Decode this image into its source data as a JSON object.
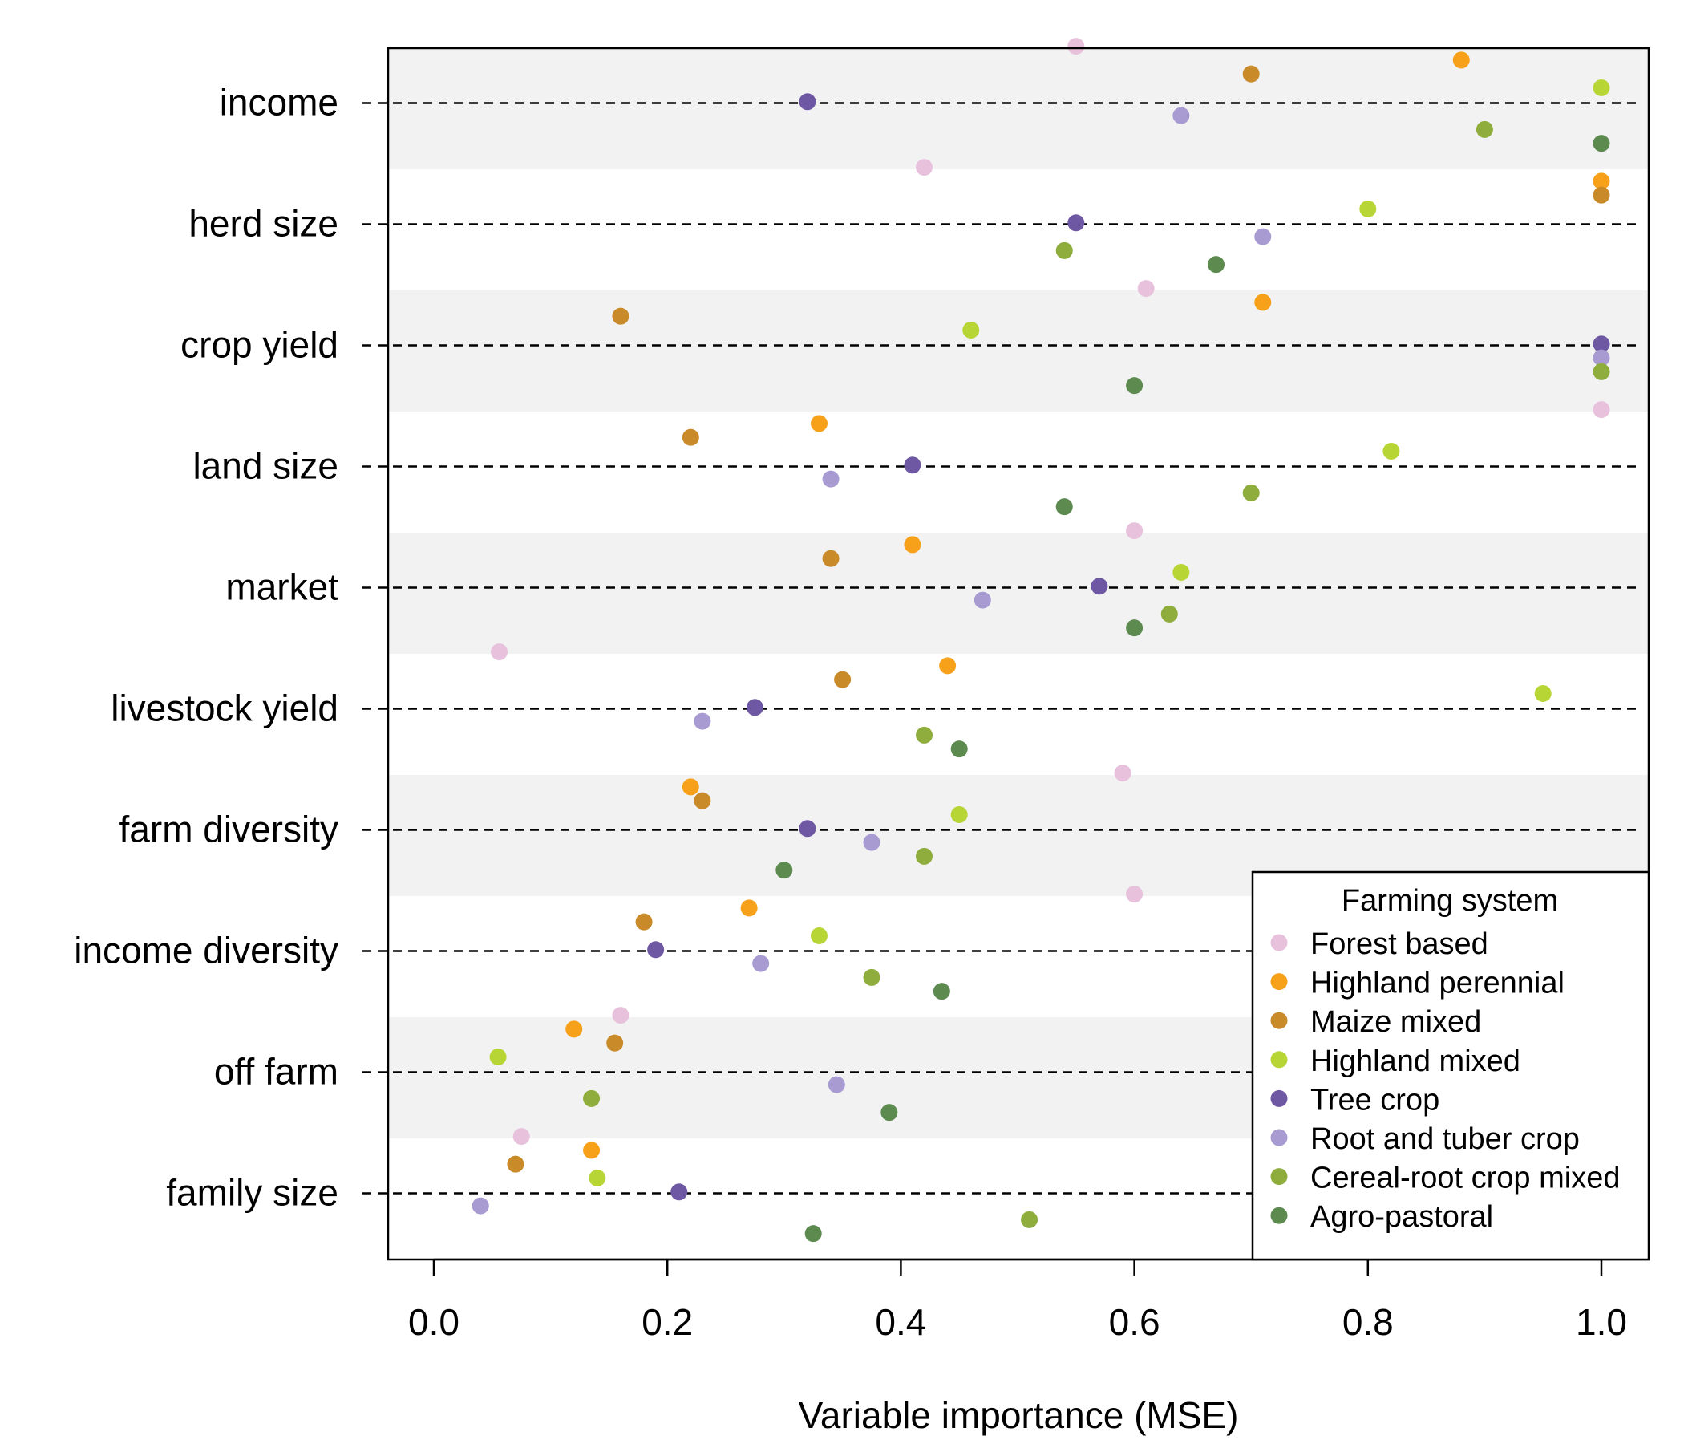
{
  "chart_data": {
    "type": "scatter",
    "title": "",
    "xlabel": "Variable importance (MSE)",
    "ylabel": "",
    "xlim": [
      -0.04,
      1.04
    ],
    "x_ticks": [
      "0.0",
      "0.2",
      "0.4",
      "0.6",
      "0.8",
      "1.0"
    ],
    "x_tick_values": [
      0.0,
      0.2,
      0.4,
      0.6,
      0.8,
      1.0
    ],
    "categories": [
      "income",
      "herd size",
      "crop yield",
      "land size",
      "market",
      "livestock yield",
      "farm diversity",
      "income diversity",
      "off farm",
      "family size"
    ],
    "band_colors": [
      "#f2f2f2",
      "#ffffff"
    ],
    "grid": "dashed line at each category",
    "legend": {
      "title": "Farming system",
      "position": "bottom-right"
    },
    "series": [
      {
        "name": "Forest based",
        "color": "#e8c1dc",
        "values": [
          0.55,
          0.42,
          0.61,
          1.0,
          0.6,
          0.056,
          0.59,
          0.6,
          0.16,
          0.075
        ]
      },
      {
        "name": "Highland perennial",
        "color": "#f7a11a",
        "values": [
          0.88,
          1.0,
          0.71,
          0.33,
          0.41,
          0.44,
          0.22,
          0.27,
          0.12,
          0.135
        ]
      },
      {
        "name": "Maize mixed",
        "color": "#c98a2a",
        "values": [
          0.7,
          1.0,
          0.16,
          0.22,
          0.34,
          0.35,
          0.23,
          0.18,
          0.155,
          0.07
        ]
      },
      {
        "name": "Highland mixed",
        "color": "#b7d636",
        "values": [
          1.0,
          0.8,
          0.46,
          0.82,
          0.64,
          0.95,
          0.45,
          0.33,
          0.055,
          0.14
        ]
      },
      {
        "name": "Tree crop",
        "color": "#6e57a3",
        "values": [
          0.32,
          0.55,
          1.0,
          0.41,
          0.57,
          0.275,
          0.32,
          0.19,
          null,
          0.21
        ]
      },
      {
        "name": "Root and tuber crop",
        "color": "#a79bd2",
        "values": [
          0.64,
          0.71,
          1.0,
          0.34,
          0.47,
          0.23,
          0.375,
          0.28,
          0.345,
          0.04
        ]
      },
      {
        "name": "Cereal-root crop mixed",
        "color": "#8fad3d",
        "values": [
          0.9,
          0.54,
          1.0,
          0.7,
          0.63,
          0.42,
          0.42,
          0.375,
          0.135,
          0.51
        ]
      },
      {
        "name": "Agro-pastoral",
        "color": "#5c8a4f",
        "values": [
          1.0,
          0.67,
          0.6,
          0.54,
          0.6,
          0.45,
          0.3,
          0.435,
          0.39,
          0.325
        ]
      }
    ]
  }
}
